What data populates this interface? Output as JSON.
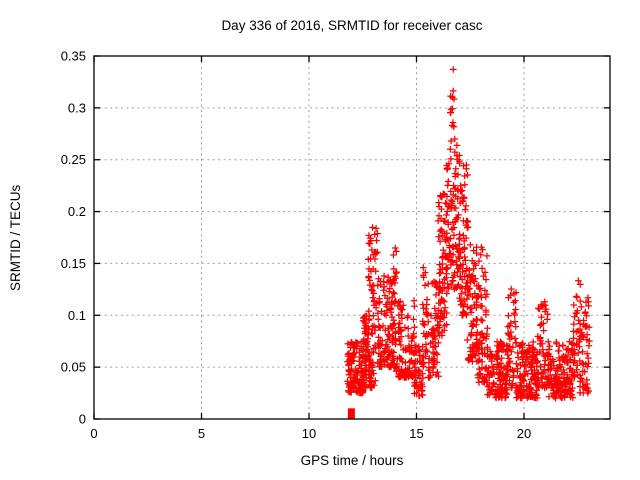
{
  "window": {
    "background": "#ffffff"
  },
  "colors": {
    "marker": "#ff0000",
    "frame": "#000000",
    "grid": "#9e9e9e",
    "text": "#000000"
  },
  "chart_data": {
    "type": "scatter",
    "title": "Day 336 of 2016, SRMTID for receiver casc",
    "xlabel": "GPS time / hours",
    "ylabel": "SRMTID / TECUs",
    "xlim": [
      0,
      24
    ],
    "ylim": [
      0,
      0.35
    ],
    "xticks": [
      0,
      5,
      10,
      15,
      20
    ],
    "xtick_labels": [
      "0",
      "5",
      "10",
      "15",
      "20"
    ],
    "yticks": [
      0,
      0.05,
      0.1,
      0.15,
      0.2,
      0.25,
      0.3,
      0.35
    ],
    "ytick_labels": [
      "0",
      "0.05",
      "0.1",
      "0.15",
      "0.2",
      "0.25",
      "0.3",
      "0.35"
    ],
    "grid": true,
    "grid_style": "dashed",
    "legend": "none",
    "marker": "plus",
    "marker_color": "#ff0000",
    "data_extent_hours": [
      11.78,
      23.05
    ],
    "peak": {
      "x": 16.71,
      "y": 0.337
    },
    "start_marker": {
      "shape": "filled-square",
      "x": 11.97,
      "y": 0.005
    },
    "singles": [
      [
        16.71,
        0.337
      ]
    ],
    "seed": 2016336,
    "cluster_format": [
      "x_start_hour",
      "x_end_hour",
      "n_points",
      "y_min_TECU",
      "y_max_TECU",
      "low_bias_exponent"
    ],
    "clusters": [
      [
        11.78,
        12.55,
        130,
        0.025,
        0.075,
        1.5
      ],
      [
        12.5,
        12.95,
        80,
        0.03,
        0.1,
        1.5
      ],
      [
        12.75,
        13.2,
        42,
        0.095,
        0.185,
        0.75
      ],
      [
        12.8,
        13.1,
        20,
        0.03,
        0.09,
        1.3
      ],
      [
        13.2,
        14.05,
        130,
        0.05,
        0.14,
        1.6
      ],
      [
        13.85,
        14.1,
        8,
        0.13,
        0.17,
        1.0
      ],
      [
        14.05,
        14.95,
        105,
        0.04,
        0.115,
        1.6
      ],
      [
        14.9,
        15.3,
        40,
        0.022,
        0.07,
        1.4
      ],
      [
        15.28,
        15.55,
        35,
        0.05,
        0.148,
        1.1
      ],
      [
        15.55,
        16.05,
        60,
        0.04,
        0.135,
        1.5
      ],
      [
        16.0,
        16.42,
        75,
        0.08,
        0.22,
        1.3
      ],
      [
        16.38,
        17.05,
        105,
        0.125,
        0.255,
        1.05
      ],
      [
        16.55,
        16.9,
        16,
        0.255,
        0.318,
        1.0
      ],
      [
        17.0,
        17.4,
        70,
        0.1,
        0.245,
        1.4
      ],
      [
        17.35,
        17.85,
        80,
        0.055,
        0.168,
        1.5
      ],
      [
        17.85,
        18.3,
        70,
        0.035,
        0.17,
        1.8
      ],
      [
        18.3,
        19.25,
        125,
        0.02,
        0.075,
        1.4
      ],
      [
        19.25,
        19.65,
        50,
        0.03,
        0.14,
        1.6
      ],
      [
        19.65,
        20.65,
        135,
        0.02,
        0.075,
        1.4
      ],
      [
        20.6,
        21.15,
        60,
        0.03,
        0.115,
        1.7
      ],
      [
        21.1,
        22.3,
        150,
        0.02,
        0.075,
        1.4
      ],
      [
        22.3,
        22.62,
        42,
        0.04,
        0.135,
        1.2
      ],
      [
        22.6,
        23.05,
        55,
        0.025,
        0.118,
        1.4
      ]
    ]
  }
}
